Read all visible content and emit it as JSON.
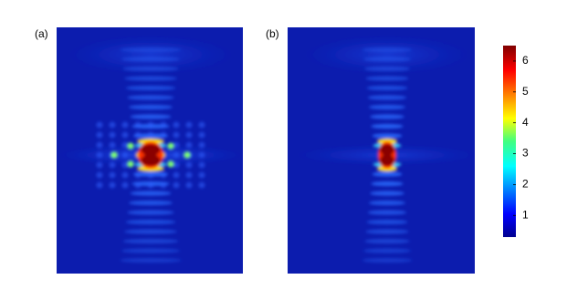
{
  "chart_data": {
    "type": "heatmap",
    "panels": [
      "(a)",
      "(b)"
    ],
    "colormap": "jet",
    "clim": [
      0.3,
      6.5
    ],
    "cticks": [
      1,
      2,
      3,
      4,
      5,
      6
    ]
  }
}
